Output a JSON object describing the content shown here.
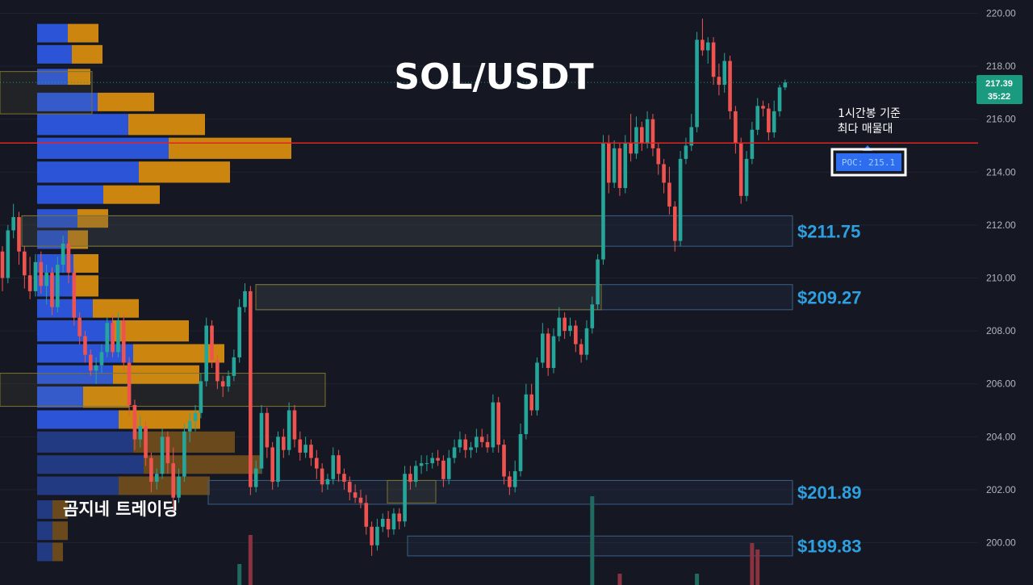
{
  "chart_data": {
    "type": "candlestick",
    "title": "SOL/USDT",
    "watermark": "곰지네 트레이딩",
    "y_axis": {
      "ticks": [
        "220.00",
        "218.00",
        "216.00",
        "214.00",
        "212.00",
        "210.00",
        "208.00",
        "206.00",
        "204.00",
        "202.00",
        "200.00"
      ],
      "range": [
        199.3,
        220.4
      ]
    },
    "current_price": {
      "value": "217.39",
      "countdown": "35:22",
      "price": 217.39
    },
    "poc": {
      "label": "POC: 215.1",
      "price": 215.1,
      "note_line1": "1시간봉 기준",
      "note_line2": "최다 매물대"
    },
    "levels": [
      {
        "label": "$211.75",
        "top": 212.35,
        "bottom": 211.2
      },
      {
        "label": "$209.27",
        "top": 209.75,
        "bottom": 208.8
      },
      {
        "label": "$201.89",
        "top": 202.35,
        "bottom": 201.45
      },
      {
        "label": "$199.83",
        "top": 200.25,
        "bottom": 199.5
      }
    ],
    "candles": [
      [
        211.0,
        211.2,
        209.5,
        210.0
      ],
      [
        210.0,
        212.0,
        209.8,
        211.8
      ],
      [
        211.8,
        212.8,
        211.5,
        212.3
      ],
      [
        212.3,
        212.5,
        210.5,
        211.0
      ],
      [
        211.0,
        211.2,
        209.6,
        210.1
      ],
      [
        210.1,
        210.8,
        209.2,
        209.5
      ],
      [
        209.5,
        210.9,
        209.3,
        210.6
      ],
      [
        210.6,
        211.0,
        209.4,
        209.7
      ],
      [
        209.7,
        210.5,
        209.0,
        210.2
      ],
      [
        210.2,
        210.4,
        208.6,
        208.9
      ],
      [
        208.9,
        210.8,
        208.7,
        210.5
      ],
      [
        210.5,
        211.6,
        210.2,
        211.3
      ],
      [
        211.3,
        211.5,
        209.8,
        210.2
      ],
      [
        210.2,
        210.4,
        208.2,
        208.5
      ],
      [
        208.5,
        208.7,
        207.5,
        207.8
      ],
      [
        207.8,
        208.0,
        206.8,
        207.1
      ],
      [
        207.1,
        207.3,
        206.3,
        206.5
      ],
      [
        206.5,
        207.0,
        206.0,
        206.7
      ],
      [
        206.7,
        207.5,
        206.4,
        207.2
      ],
      [
        207.2,
        208.5,
        207.0,
        208.3
      ],
      [
        208.3,
        208.6,
        207.0,
        207.2
      ],
      [
        207.2,
        208.7,
        207.0,
        208.4
      ],
      [
        208.4,
        208.6,
        206.5,
        206.8
      ],
      [
        206.8,
        207.0,
        204.8,
        205.2
      ],
      [
        205.2,
        205.4,
        203.5,
        203.9
      ],
      [
        203.9,
        204.8,
        203.6,
        204.4
      ],
      [
        204.4,
        204.6,
        202.9,
        203.2
      ],
      [
        203.2,
        203.4,
        201.9,
        202.3
      ],
      [
        202.3,
        202.8,
        202.0,
        202.6
      ],
      [
        202.6,
        204.3,
        202.4,
        204.0
      ],
      [
        204.0,
        204.2,
        202.6,
        203.0
      ],
      [
        203.0,
        203.6,
        201.2,
        201.7
      ],
      [
        201.7,
        202.8,
        201.5,
        202.5
      ],
      [
        202.5,
        204.5,
        202.3,
        204.2
      ],
      [
        204.2,
        204.9,
        203.8,
        204.6
      ],
      [
        204.6,
        205.2,
        204.2,
        204.9
      ],
      [
        204.9,
        206.4,
        204.7,
        206.1
      ],
      [
        206.1,
        208.5,
        205.9,
        208.2
      ],
      [
        208.2,
        208.4,
        206.6,
        206.9
      ],
      [
        206.9,
        207.1,
        205.8,
        206.1
      ],
      [
        206.1,
        206.3,
        205.5,
        205.9
      ],
      [
        205.9,
        206.5,
        205.7,
        206.3
      ],
      [
        206.3,
        207.3,
        206.1,
        207.0
      ],
      [
        207.0,
        209.2,
        206.8,
        208.9
      ],
      [
        208.9,
        209.8,
        208.7,
        209.5
      ],
      [
        209.5,
        209.7,
        201.8,
        202.1
      ],
      [
        202.1,
        203.1,
        201.9,
        202.8
      ],
      [
        202.8,
        205.2,
        202.6,
        204.9
      ],
      [
        204.9,
        205.1,
        203.2,
        203.6
      ],
      [
        203.6,
        203.8,
        202.0,
        202.3
      ],
      [
        202.3,
        204.2,
        202.1,
        204.0
      ],
      [
        204.0,
        204.3,
        203.2,
        203.5
      ],
      [
        203.5,
        205.3,
        203.3,
        205.0
      ],
      [
        205.0,
        205.2,
        203.6,
        203.9
      ],
      [
        203.9,
        204.2,
        203.1,
        203.4
      ],
      [
        203.4,
        204.0,
        203.2,
        203.7
      ],
      [
        203.7,
        203.9,
        202.9,
        203.2
      ],
      [
        203.2,
        203.5,
        202.4,
        202.8
      ],
      [
        202.8,
        203.0,
        201.9,
        202.2
      ],
      [
        202.2,
        202.6,
        202.0,
        202.4
      ],
      [
        202.4,
        203.6,
        202.2,
        203.3
      ],
      [
        203.3,
        203.5,
        202.3,
        202.6
      ],
      [
        202.6,
        202.8,
        202.0,
        202.3
      ],
      [
        202.3,
        202.5,
        201.6,
        201.9
      ],
      [
        201.9,
        202.2,
        201.5,
        201.7
      ],
      [
        201.7,
        202.0,
        201.3,
        201.5
      ],
      [
        201.5,
        201.8,
        200.3,
        200.6
      ],
      [
        200.6,
        200.8,
        199.5,
        199.9
      ],
      [
        199.9,
        200.9,
        199.7,
        200.6
      ],
      [
        200.6,
        201.1,
        200.4,
        200.9
      ],
      [
        200.9,
        201.2,
        200.2,
        200.5
      ],
      [
        200.5,
        201.3,
        200.3,
        201.1
      ],
      [
        201.1,
        201.3,
        200.5,
        200.8
      ],
      [
        200.8,
        202.9,
        200.6,
        202.6
      ],
      [
        202.6,
        202.9,
        202.0,
        202.3
      ],
      [
        202.3,
        203.1,
        202.1,
        202.9
      ],
      [
        202.9,
        203.3,
        202.6,
        203.0
      ],
      [
        203.0,
        203.3,
        202.7,
        203.0
      ],
      [
        203.0,
        203.4,
        202.8,
        203.2
      ],
      [
        203.2,
        203.5,
        202.9,
        203.1
      ],
      [
        203.1,
        203.3,
        202.1,
        202.4
      ],
      [
        202.4,
        203.5,
        202.2,
        203.2
      ],
      [
        203.2,
        203.9,
        203.0,
        203.6
      ],
      [
        203.6,
        204.2,
        203.4,
        203.9
      ],
      [
        203.9,
        204.1,
        203.2,
        203.5
      ],
      [
        203.5,
        203.8,
        203.2,
        203.6
      ],
      [
        203.6,
        204.3,
        203.4,
        204.0
      ],
      [
        204.0,
        204.3,
        203.6,
        203.8
      ],
      [
        203.8,
        204.1,
        203.4,
        203.6
      ],
      [
        203.6,
        205.6,
        203.4,
        205.3
      ],
      [
        205.3,
        205.5,
        203.4,
        203.7
      ],
      [
        203.7,
        203.9,
        202.2,
        202.5
      ],
      [
        202.5,
        202.7,
        201.8,
        202.1
      ],
      [
        202.1,
        203.1,
        201.9,
        202.7
      ],
      [
        202.7,
        204.5,
        202.5,
        204.1
      ],
      [
        204.1,
        206.0,
        203.9,
        205.6
      ],
      [
        205.6,
        206.0,
        204.8,
        205.0
      ],
      [
        205.0,
        207.0,
        204.8,
        206.8
      ],
      [
        206.8,
        208.3,
        206.6,
        207.9
      ],
      [
        207.9,
        208.1,
        206.3,
        206.6
      ],
      [
        206.6,
        208.1,
        206.4,
        207.8
      ],
      [
        207.8,
        208.9,
        207.6,
        208.5
      ],
      [
        208.5,
        208.7,
        207.7,
        208.0
      ],
      [
        208.0,
        208.5,
        207.8,
        208.2
      ],
      [
        208.2,
        208.4,
        207.2,
        207.5
      ],
      [
        207.5,
        207.7,
        206.8,
        207.1
      ],
      [
        207.1,
        208.4,
        206.9,
        208.1
      ],
      [
        208.1,
        209.3,
        207.9,
        209.0
      ],
      [
        209.0,
        210.9,
        208.8,
        210.7
      ],
      [
        210.7,
        215.4,
        210.5,
        215.1
      ],
      [
        215.1,
        215.4,
        213.2,
        213.6
      ],
      [
        213.6,
        215.2,
        213.4,
        214.9
      ],
      [
        214.9,
        215.1,
        213.1,
        213.4
      ],
      [
        213.4,
        215.4,
        213.2,
        215.1
      ],
      [
        215.1,
        216.2,
        214.4,
        214.7
      ],
      [
        214.7,
        216.1,
        214.5,
        215.7
      ],
      [
        215.7,
        215.9,
        214.8,
        215.1
      ],
      [
        215.1,
        216.3,
        214.9,
        216.0
      ],
      [
        216.0,
        216.2,
        214.6,
        214.9
      ],
      [
        214.9,
        215.1,
        213.9,
        214.3
      ],
      [
        214.3,
        214.5,
        213.2,
        213.6
      ],
      [
        213.6,
        214.2,
        212.4,
        212.7
      ],
      [
        212.7,
        212.9,
        211.0,
        211.4
      ],
      [
        211.4,
        214.8,
        211.2,
        214.5
      ],
      [
        214.5,
        215.3,
        214.3,
        215.0
      ],
      [
        215.0,
        216.2,
        214.8,
        215.7
      ],
      [
        215.7,
        219.3,
        215.5,
        219.0
      ],
      [
        219.0,
        219.8,
        218.4,
        218.6
      ],
      [
        218.6,
        219.1,
        218.1,
        218.9
      ],
      [
        218.9,
        219.1,
        217.3,
        217.6
      ],
      [
        217.6,
        218.1,
        216.9,
        217.3
      ],
      [
        217.3,
        218.5,
        217.0,
        218.2
      ],
      [
        218.2,
        218.4,
        216.0,
        216.3
      ],
      [
        216.3,
        216.5,
        214.7,
        215.1
      ],
      [
        215.1,
        215.3,
        212.8,
        213.1
      ],
      [
        213.1,
        214.8,
        212.9,
        214.5
      ],
      [
        214.5,
        215.9,
        214.3,
        215.6
      ],
      [
        215.6,
        216.8,
        215.4,
        216.5
      ],
      [
        216.5,
        216.7,
        216.1,
        216.4
      ],
      [
        216.4,
        216.6,
        215.2,
        215.5
      ],
      [
        215.5,
        216.7,
        215.3,
        216.3
      ],
      [
        216.3,
        217.3,
        216.1,
        217.2
      ],
      [
        217.2,
        217.5,
        217.1,
        217.39
      ]
    ],
    "volume_profile": [
      {
        "top": 219.6,
        "bottom": 218.9,
        "buy": 38,
        "sell": 38
      },
      {
        "top": 218.8,
        "bottom": 218.1,
        "buy": 43,
        "sell": 38
      },
      {
        "top": 217.9,
        "bottom": 217.3,
        "buy": 38,
        "sell": 28
      },
      {
        "top": 217.0,
        "bottom": 216.3,
        "buy": 75,
        "sell": 70
      },
      {
        "top": 216.2,
        "bottom": 215.4,
        "buy": 113,
        "sell": 95
      },
      {
        "top": 215.3,
        "bottom": 214.5,
        "buy": 163,
        "sell": 152
      },
      {
        "top": 214.4,
        "bottom": 213.6,
        "buy": 126,
        "sell": 113
      },
      {
        "top": 213.5,
        "bottom": 212.8,
        "buy": 82,
        "sell": 70
      },
      {
        "top": 212.6,
        "bottom": 211.9,
        "buy": 50,
        "sell": 38
      },
      {
        "top": 211.8,
        "bottom": 211.1,
        "buy": 38,
        "sell": 25
      },
      {
        "top": 210.9,
        "bottom": 210.2,
        "buy": 45,
        "sell": 31
      },
      {
        "top": 210.1,
        "bottom": 209.3,
        "buy": 45,
        "sell": 31
      },
      {
        "top": 209.2,
        "bottom": 208.5,
        "buy": 69,
        "sell": 57
      },
      {
        "top": 208.4,
        "bottom": 207.6,
        "buy": 94,
        "sell": 94
      },
      {
        "top": 207.5,
        "bottom": 206.8,
        "buy": 119,
        "sell": 113
      },
      {
        "top": 206.7,
        "bottom": 206.0,
        "buy": 94,
        "sell": 107
      },
      {
        "top": 205.9,
        "bottom": 205.1,
        "buy": 57,
        "sell": 57
      },
      {
        "top": 205.0,
        "bottom": 204.3,
        "buy": 101,
        "sell": 101
      },
      {
        "top": 204.2,
        "bottom": 203.4,
        "buy": 119,
        "sell": 126
      },
      {
        "top": 203.3,
        "bottom": 202.6,
        "buy": 132,
        "sell": 145
      },
      {
        "top": 202.5,
        "bottom": 201.8,
        "buy": 101,
        "sell": 113
      },
      {
        "top": 201.6,
        "bottom": 200.9,
        "buy": 19,
        "sell": 19
      },
      {
        "top": 200.8,
        "bottom": 200.1,
        "buy": 19,
        "sell": 19
      },
      {
        "top": 200.0,
        "bottom": 199.3,
        "buy": 19,
        "sell": 13
      }
    ],
    "volume_bars": [
      {
        "index": 45,
        "height": 62,
        "dir": "down"
      },
      {
        "index": 43,
        "height": 26,
        "dir": "up"
      },
      {
        "index": 107,
        "height": 110,
        "dir": "up"
      },
      {
        "index": 112,
        "height": 14,
        "dir": "down"
      },
      {
        "index": 126,
        "height": 14,
        "dir": "up"
      },
      {
        "index": 136,
        "height": 52,
        "dir": "down"
      },
      {
        "index": 137,
        "height": 44,
        "dir": "down"
      }
    ]
  }
}
